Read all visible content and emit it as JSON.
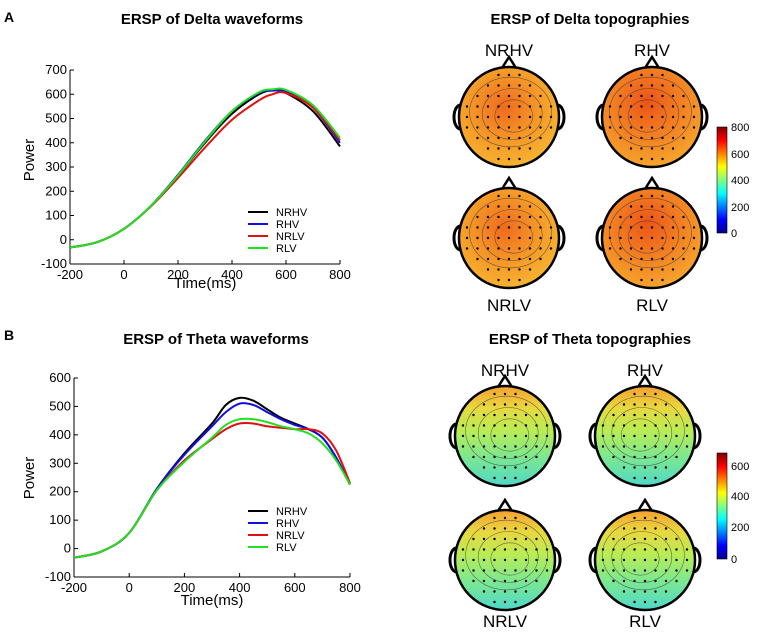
{
  "panels": [
    {
      "letter": "A",
      "waveform_title": "ERSP of Delta waveforms",
      "topo_title": "ERSP of Delta topographies",
      "topo_labels": [
        "NRHV",
        "RHV",
        "NRLV",
        "RLV"
      ],
      "colorbar_ticks": [
        "800",
        "600",
        "400",
        "200",
        "0"
      ]
    },
    {
      "letter": "B",
      "waveform_title": "ERSP of Theta waveforms",
      "topo_title": "ERSP of Theta topographies",
      "topo_labels": [
        "NRHV",
        "RHV",
        "NRLV",
        "RLV"
      ],
      "colorbar_ticks": [
        "600",
        "400",
        "200",
        "0"
      ]
    }
  ],
  "chart_data": [
    {
      "type": "line",
      "title": "ERSP of Delta waveforms",
      "xlabel": "Time(ms)",
      "ylabel": "Power",
      "xlim": [
        -200,
        800
      ],
      "ylim": [
        -100,
        700
      ],
      "x_ticks": [
        -200,
        0,
        200,
        400,
        600,
        800
      ],
      "y_ticks": [
        -100,
        0,
        100,
        200,
        300,
        400,
        500,
        600,
        700
      ],
      "legend": "center-right",
      "x": [
        -200,
        -100,
        0,
        100,
        200,
        300,
        400,
        500,
        550,
        600,
        700,
        800
      ],
      "series": [
        {
          "name": "NRHV",
          "color": "#000000",
          "values": [
            -32,
            -10,
            45,
            140,
            265,
            400,
            520,
            600,
            615,
            605,
            530,
            385
          ]
        },
        {
          "name": "RHV",
          "color": "#1010e0",
          "values": [
            -32,
            -10,
            45,
            140,
            268,
            408,
            530,
            605,
            615,
            610,
            545,
            400
          ]
        },
        {
          "name": "NRLV",
          "color": "#e01010",
          "values": [
            -32,
            -10,
            45,
            138,
            255,
            380,
            495,
            575,
            600,
            605,
            545,
            410
          ]
        },
        {
          "name": "RLV",
          "color": "#20e020",
          "values": [
            -32,
            -10,
            45,
            140,
            265,
            405,
            530,
            608,
            620,
            618,
            555,
            420
          ]
        }
      ]
    },
    {
      "type": "line",
      "title": "ERSP of Theta waveforms",
      "xlabel": "Time(ms)",
      "ylabel": "Power",
      "xlim": [
        -200,
        800
      ],
      "ylim": [
        -100,
        600
      ],
      "x_ticks": [
        -200,
        0,
        200,
        400,
        600,
        800
      ],
      "y_ticks": [
        -100,
        0,
        100,
        200,
        300,
        400,
        500,
        600
      ],
      "legend": "center-right",
      "x": [
        -200,
        -100,
        0,
        100,
        200,
        300,
        350,
        400,
        450,
        500,
        550,
        600,
        650,
        700,
        750,
        800
      ],
      "series": [
        {
          "name": "NRHV",
          "color": "#000000",
          "values": [
            -32,
            -10,
            55,
            210,
            335,
            440,
            505,
            530,
            520,
            490,
            460,
            440,
            420,
            390,
            320,
            225
          ]
        },
        {
          "name": "RHV",
          "color": "#1010e0",
          "values": [
            -32,
            -10,
            55,
            210,
            330,
            430,
            480,
            510,
            505,
            480,
            455,
            435,
            420,
            390,
            320,
            225
          ]
        },
        {
          "name": "NRLV",
          "color": "#e01010",
          "values": [
            -32,
            -10,
            55,
            205,
            310,
            385,
            420,
            440,
            440,
            430,
            425,
            420,
            420,
            405,
            345,
            230
          ]
        },
        {
          "name": "RLV",
          "color": "#20e020",
          "values": [
            -32,
            -10,
            55,
            205,
            305,
            390,
            435,
            455,
            455,
            445,
            430,
            420,
            405,
            370,
            310,
            225
          ]
        }
      ]
    }
  ]
}
